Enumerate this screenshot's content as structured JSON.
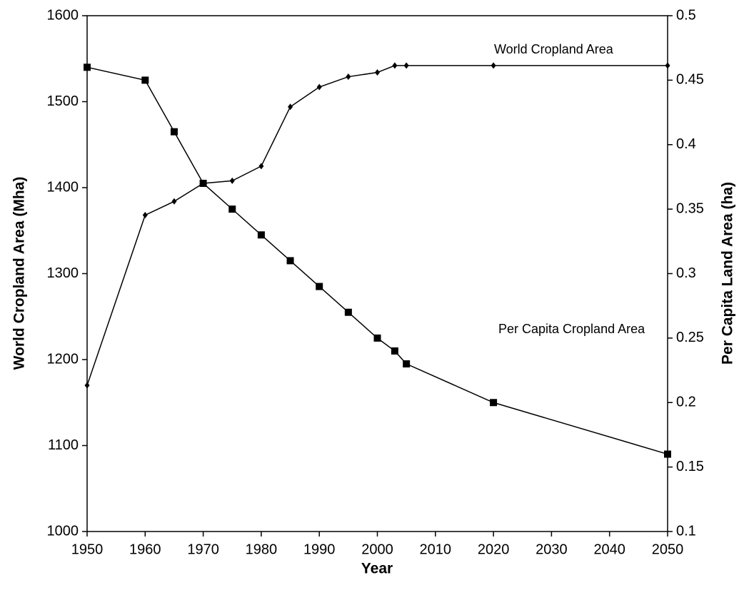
{
  "chart_data": {
    "type": "line",
    "x_label": "Year",
    "y_label": "World Cropland Area (Mha)",
    "y2_label": "Per Capita Land Area (ha)",
    "annotations": [
      "World Cropland Area",
      "Per Capita Cropland Area"
    ],
    "x": [
      1950,
      1960,
      1965,
      1970,
      1975,
      1980,
      1985,
      1990,
      1995,
      2000,
      2003,
      2005,
      2020,
      2050
    ],
    "series": [
      {
        "name": "World Cropland Area",
        "color": "#000000",
        "marker": "diamond",
        "values": [
          1170,
          1368,
          1384,
          1405,
          1408,
          1425,
          1494,
          1517,
          1529,
          1534,
          1542,
          1542,
          1542,
          1542
        ]
      },
      {
        "name": "Per Capita Cropland Area",
        "color": "#000000",
        "marker": "square",
        "axis": "y2",
        "values": [
          0.46,
          0.45,
          0.41,
          0.37,
          0.35,
          0.33,
          0.31,
          0.29,
          0.27,
          0.25,
          0.24,
          0.23,
          0.2,
          0.16
        ]
      }
    ],
    "xlim": [
      1950,
      2050
    ],
    "xticks": [
      1950,
      1960,
      1970,
      1980,
      1990,
      2000,
      2010,
      2020,
      2030,
      2040,
      2050
    ],
    "ylim": [
      1000,
      1600
    ],
    "yticks": [
      1000,
      1100,
      1200,
      1300,
      1400,
      1500,
      1600
    ],
    "y2lim": [
      0.1,
      0.5
    ],
    "y2ticks": [
      0.1,
      0.15,
      0.2,
      0.25,
      0.3,
      0.35,
      0.4,
      0.45,
      0.5
    ],
    "grid": false,
    "legend": false
  }
}
